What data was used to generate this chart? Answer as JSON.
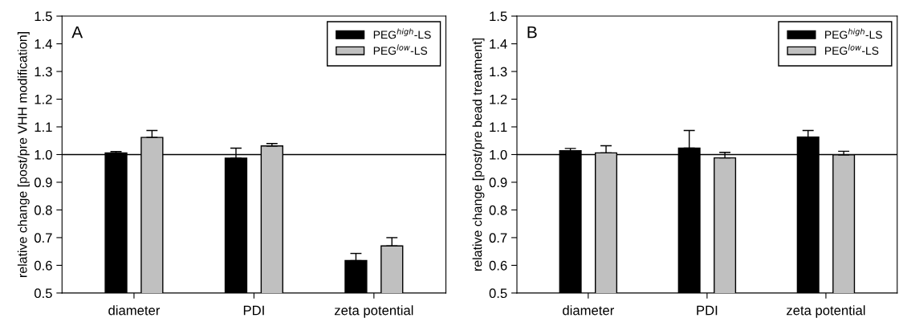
{
  "chart_data": [
    {
      "type": "bar",
      "annotations": [
        "A"
      ],
      "ylabel": "relative change [post/pre VHH modification]",
      "categories": [
        "diameter",
        "PDI",
        "zeta potential"
      ],
      "series": [
        {
          "name": "PEG$^{high}$-LS",
          "color": "#000000",
          "values": [
            1.006,
            0.987,
            0.617
          ],
          "errors": [
            [
              1.006,
              1.011
            ],
            [
              0.987,
              1.023
            ],
            [
              0.617,
              0.643
            ]
          ]
        },
        {
          "name": "PEG$^{low}$-LS",
          "color": "#c0c0c0",
          "values": [
            1.062,
            1.031,
            0.67
          ],
          "errors": [
            [
              1.062,
              1.087
            ],
            [
              1.031,
              1.04
            ],
            [
              0.67,
              0.7
            ]
          ]
        }
      ],
      "ylim": [
        0.5,
        1.5
      ],
      "yticks": [
        0.5,
        0.6,
        0.7,
        0.8,
        0.9,
        {
          "value": 1,
          "label": "1.0"
        },
        1.1,
        1.2,
        1.3,
        1.4,
        1.5
      ],
      "ref_lines": [
        {
          "axis": "y",
          "value": 1,
          "color": "#000000"
        }
      ],
      "legend": "top right",
      "grid": false
    },
    {
      "type": "bar",
      "annotations": [
        "B"
      ],
      "ylabel": "relative change [post/pre bead treatment]",
      "categories": [
        "diameter",
        "PDI",
        "zeta potential"
      ],
      "series": [
        {
          "name": "PEG$^{high}$-LS",
          "color": "#000000",
          "values": [
            1.014,
            1.023,
            1.063
          ],
          "errors": [
            [
              1.014,
              1.022
            ],
            [
              1.023,
              1.087
            ],
            [
              1.063,
              1.087
            ]
          ]
        },
        {
          "name": "PEG$^{low}$-LS",
          "color": "#c0c0c0",
          "values": [
            1.006,
            0.988,
            0.999
          ],
          "errors": [
            [
              1.006,
              1.032
            ],
            [
              0.988,
              1.008
            ],
            [
              0.999,
              1.012
            ]
          ]
        }
      ],
      "ylim": [
        0.5,
        1.5
      ],
      "yticks": [
        0.5,
        0.6,
        0.7,
        0.8,
        0.9,
        {
          "value": 1,
          "label": "1.0"
        },
        1.1,
        1.2,
        1.3,
        1.4,
        1.5
      ],
      "ref_lines": [
        {
          "axis": "y",
          "value": 1,
          "color": "#000000"
        }
      ],
      "legend": "top right",
      "grid": false
    }
  ]
}
